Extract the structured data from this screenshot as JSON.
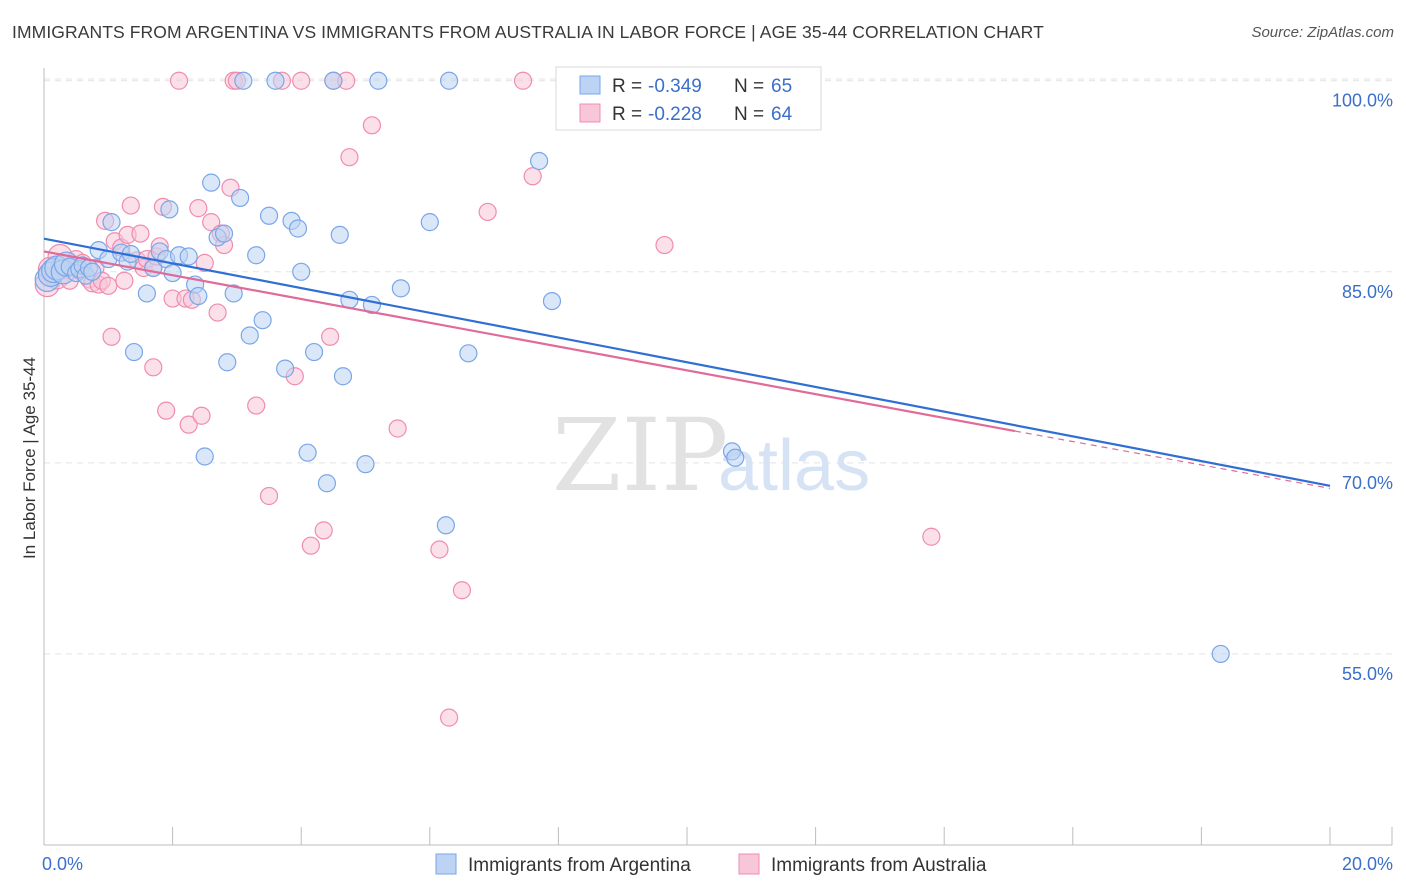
{
  "title": "IMMIGRANTS FROM ARGENTINA VS IMMIGRANTS FROM AUSTRALIA IN LABOR FORCE | AGE 35-44 CORRELATION CHART",
  "source": "Source: ZipAtlas.com",
  "watermark": {
    "zip": "ZIP",
    "atlas": "atlas"
  },
  "chart_data": {
    "type": "scatter",
    "title": "IMMIGRANTS FROM ARGENTINA VS IMMIGRANTS FROM AUSTRALIA IN LABOR FORCE | AGE 35-44 CORRELATION CHART",
    "xlabel": "",
    "ylabel": "In Labor Force | Age 35-44",
    "xlim": [
      0,
      20
    ],
    "ylim": [
      40,
      101
    ],
    "x_tick_labels": [
      "0.0%",
      "20.0%"
    ],
    "y_ticks": [
      55,
      70,
      85,
      100
    ],
    "y_tick_labels": [
      "55.0%",
      "70.0%",
      "85.0%",
      "100.0%"
    ],
    "grid": true,
    "legend_position": "top-center",
    "series": [
      {
        "name": "Immigrants from Argentina",
        "color": "#7aa6e8",
        "fill": "#bcd3f3",
        "line_color": "#2f6fd4",
        "R": "-0.349",
        "N": "65",
        "trend": {
          "x0": 0,
          "y0": 87.6,
          "x1": 20,
          "y1": 68.2
        },
        "points": [
          [
            0.05,
            84.4
          ],
          [
            0.1,
            84.8
          ],
          [
            0.15,
            85.1
          ],
          [
            0.2,
            85.3
          ],
          [
            0.3,
            85.0
          ],
          [
            0.35,
            85.6
          ],
          [
            0.4,
            85.4
          ],
          [
            0.5,
            84.9
          ],
          [
            0.55,
            85.2
          ],
          [
            0.6,
            85.5
          ],
          [
            0.65,
            84.7
          ],
          [
            0.7,
            85.3
          ],
          [
            0.75,
            85.0
          ],
          [
            0.85,
            86.7
          ],
          [
            1.0,
            86.0
          ],
          [
            1.05,
            88.9
          ],
          [
            1.2,
            86.5
          ],
          [
            1.3,
            85.8
          ],
          [
            1.35,
            86.4
          ],
          [
            1.4,
            78.7
          ],
          [
            1.6,
            83.3
          ],
          [
            1.7,
            85.3
          ],
          [
            1.8,
            86.6
          ],
          [
            1.9,
            86.0
          ],
          [
            1.95,
            89.9
          ],
          [
            2.0,
            84.9
          ],
          [
            2.1,
            86.3
          ],
          [
            2.25,
            86.2
          ],
          [
            2.35,
            84.0
          ],
          [
            2.4,
            83.1
          ],
          [
            2.5,
            70.5
          ],
          [
            2.6,
            92.0
          ],
          [
            2.7,
            87.7
          ],
          [
            2.8,
            88.0
          ],
          [
            2.85,
            77.9
          ],
          [
            2.95,
            83.3
          ],
          [
            3.05,
            90.8
          ],
          [
            3.1,
            100.0
          ],
          [
            3.2,
            80.0
          ],
          [
            3.3,
            86.3
          ],
          [
            3.4,
            81.2
          ],
          [
            3.5,
            89.4
          ],
          [
            3.6,
            100.0
          ],
          [
            3.75,
            77.4
          ],
          [
            3.85,
            89.0
          ],
          [
            3.95,
            88.4
          ],
          [
            4.0,
            85.0
          ],
          [
            4.1,
            70.8
          ],
          [
            4.2,
            78.7
          ],
          [
            4.4,
            68.4
          ],
          [
            4.5,
            100.0
          ],
          [
            4.6,
            87.9
          ],
          [
            4.65,
            76.8
          ],
          [
            4.75,
            82.8
          ],
          [
            5.0,
            69.9
          ],
          [
            5.1,
            82.4
          ],
          [
            5.2,
            100.0
          ],
          [
            5.55,
            83.7
          ],
          [
            6.0,
            88.9
          ],
          [
            6.25,
            65.1
          ],
          [
            6.3,
            100.0
          ],
          [
            6.6,
            78.6
          ],
          [
            7.7,
            93.7
          ],
          [
            7.9,
            82.7
          ],
          [
            10.7,
            70.9
          ],
          [
            10.75,
            70.4
          ],
          [
            18.3,
            55.0
          ]
        ]
      },
      {
        "name": "Immigrants from Australia",
        "color": "#f08cb0",
        "fill": "#f7c6d8",
        "line_color": "#e06b98",
        "R": "-0.228",
        "N": "64",
        "trend": {
          "x0": 0,
          "y0": 86.6,
          "x1": 15.1,
          "y1": 72.5,
          "dash_x1": 20,
          "dash_y1": 68.0
        },
        "points": [
          [
            0.05,
            84.0
          ],
          [
            0.1,
            85.2
          ],
          [
            0.2,
            84.6
          ],
          [
            0.25,
            86.2
          ],
          [
            0.3,
            85.4
          ],
          [
            0.4,
            84.3
          ],
          [
            0.5,
            86.0
          ],
          [
            0.55,
            85.1
          ],
          [
            0.6,
            85.7
          ],
          [
            0.7,
            84.4
          ],
          [
            0.75,
            84.1
          ],
          [
            0.8,
            85.3
          ],
          [
            0.85,
            84.0
          ],
          [
            0.9,
            84.3
          ],
          [
            0.95,
            89.0
          ],
          [
            1.0,
            83.9
          ],
          [
            1.05,
            79.9
          ],
          [
            1.1,
            87.4
          ],
          [
            1.2,
            86.9
          ],
          [
            1.25,
            84.3
          ],
          [
            1.3,
            87.9
          ],
          [
            1.35,
            90.2
          ],
          [
            1.45,
            85.9
          ],
          [
            1.5,
            88.0
          ],
          [
            1.55,
            85.3
          ],
          [
            1.6,
            86.0
          ],
          [
            1.7,
            85.3
          ],
          [
            1.7,
            77.5
          ],
          [
            1.75,
            86.2
          ],
          [
            1.8,
            87.0
          ],
          [
            1.85,
            90.1
          ],
          [
            1.9,
            74.1
          ],
          [
            2.0,
            82.9
          ],
          [
            2.1,
            100.0
          ],
          [
            2.2,
            82.9
          ],
          [
            2.25,
            73.0
          ],
          [
            2.3,
            82.8
          ],
          [
            2.4,
            90.0
          ],
          [
            2.45,
            73.7
          ],
          [
            2.5,
            85.7
          ],
          [
            2.6,
            88.9
          ],
          [
            2.7,
            81.8
          ],
          [
            2.75,
            88.0
          ],
          [
            2.8,
            87.1
          ],
          [
            2.9,
            91.6
          ],
          [
            2.95,
            100.0
          ],
          [
            3.0,
            100.0
          ],
          [
            3.3,
            74.5
          ],
          [
            3.5,
            67.4
          ],
          [
            3.7,
            100.0
          ],
          [
            3.9,
            76.8
          ],
          [
            4.0,
            100.0
          ],
          [
            4.15,
            63.5
          ],
          [
            4.35,
            64.7
          ],
          [
            4.45,
            79.9
          ],
          [
            4.5,
            100.0
          ],
          [
            4.7,
            100.0
          ],
          [
            4.75,
            94.0
          ],
          [
            5.1,
            96.5
          ],
          [
            5.5,
            72.7
          ],
          [
            6.15,
            63.2
          ],
          [
            6.3,
            50.0
          ],
          [
            6.5,
            60.0
          ],
          [
            6.9,
            89.7
          ],
          [
            7.45,
            100.0
          ],
          [
            7.6,
            92.5
          ],
          [
            9.65,
            87.1
          ],
          [
            13.8,
            64.2
          ]
        ]
      }
    ]
  },
  "legend": {
    "r_label": "R =",
    "n_label": "N =",
    "rows": [
      {
        "r": "-0.349",
        "n": "65"
      },
      {
        "r": "-0.228",
        "n": "64"
      }
    ]
  },
  "bottom_legend": [
    {
      "label": "Immigrants from Argentina"
    },
    {
      "label": "Immigrants from Australia"
    }
  ]
}
